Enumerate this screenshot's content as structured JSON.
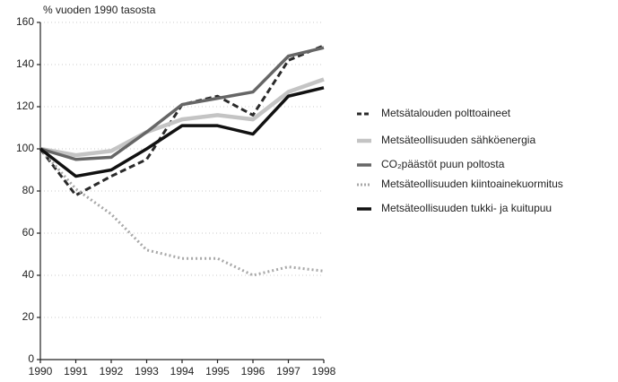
{
  "chart_data": {
    "type": "line",
    "y_axis_label": "% vuoden 1990 tasosta",
    "categories": [
      "1990",
      "1991",
      "1992",
      "1993",
      "1994",
      "1995",
      "1996",
      "1997",
      "1998"
    ],
    "series": [
      {
        "name": "Metsätalouden polttoaineet",
        "color": "#2a2a2a",
        "values": [
          100,
          78,
          87,
          95,
          121,
          125,
          116,
          142,
          149
        ]
      },
      {
        "name": "Metsäteollisuuden sähköenergia",
        "color": "#c4c4c4",
        "values": [
          100,
          97,
          99,
          108,
          114,
          116,
          114,
          127,
          133
        ]
      },
      {
        "name": "CO₂päästöt puun poltosta",
        "color": "#666666",
        "values": [
          100,
          95,
          96,
          108,
          121,
          124,
          127,
          144,
          148
        ]
      },
      {
        "name": "Metsäteollisuuden kiintoainekuormitus",
        "color": "#a8a8a8",
        "values": [
          100,
          81,
          69,
          52,
          48,
          48,
          40,
          44,
          42
        ]
      },
      {
        "name": "Metsäteollisuuden tukki- ja kuitupuu",
        "color": "#111111",
        "values": [
          100,
          87,
          90,
          100,
          111,
          111,
          107,
          125,
          129
        ]
      }
    ],
    "ylim": [
      0,
      160
    ],
    "yticks": [
      0,
      20,
      40,
      60,
      80,
      100,
      120,
      140,
      160
    ],
    "grid": true
  }
}
